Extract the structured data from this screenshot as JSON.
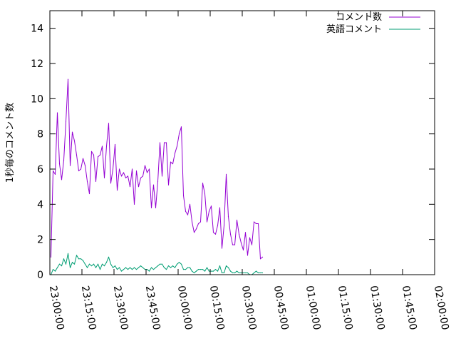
{
  "chart_data": {
    "type": "line",
    "title": "",
    "xlabel": "",
    "ylabel": "1秒毎のコメント数",
    "ylim": [
      0,
      15
    ],
    "xlim": [
      "23:00:00",
      "02:00:00"
    ],
    "yticks": [
      "0",
      "2",
      "4",
      "6",
      "8",
      "10",
      "12",
      "14"
    ],
    "xticks": [
      "23:00:00",
      "23:15:00",
      "23:30:00",
      "23:45:00",
      "00:00:00",
      "00:15:00",
      "00:30:00",
      "00:45:00",
      "01:00:00",
      "01:15:00",
      "01:30:00",
      "01:45:00",
      "02:00:00"
    ],
    "grid": false,
    "legend_position": "top-right",
    "series": [
      {
        "name": "コメント数",
        "color": "#9400d3",
        "points": [
          [
            "23:00:30",
            1.0
          ],
          [
            "23:01:30",
            5.9
          ],
          [
            "23:02:30",
            5.7
          ],
          [
            "23:03:30",
            9.2
          ],
          [
            "23:04:30",
            6.3
          ],
          [
            "23:05:30",
            5.4
          ],
          [
            "23:06:30",
            6.5
          ],
          [
            "23:07:30",
            8.7
          ],
          [
            "23:08:30",
            11.1
          ],
          [
            "23:09:30",
            6.2
          ],
          [
            "23:10:30",
            8.1
          ],
          [
            "23:11:30",
            7.6
          ],
          [
            "23:12:30",
            6.8
          ],
          [
            "23:13:30",
            5.9
          ],
          [
            "23:14:30",
            6.0
          ],
          [
            "23:15:30",
            6.6
          ],
          [
            "23:16:30",
            6.2
          ],
          [
            "23:17:30",
            5.3
          ],
          [
            "23:18:30",
            4.6
          ],
          [
            "23:19:30",
            7.0
          ],
          [
            "23:20:30",
            6.8
          ],
          [
            "23:21:30",
            5.3
          ],
          [
            "23:22:30",
            6.7
          ],
          [
            "23:23:30",
            6.8
          ],
          [
            "23:24:30",
            7.3
          ],
          [
            "23:25:30",
            5.5
          ],
          [
            "23:26:30",
            7.3
          ],
          [
            "23:27:30",
            8.6
          ],
          [
            "23:28:30",
            5.2
          ],
          [
            "23:29:30",
            6.0
          ],
          [
            "23:30:30",
            7.4
          ],
          [
            "23:31:30",
            4.8
          ],
          [
            "23:32:30",
            6.0
          ],
          [
            "23:33:30",
            5.6
          ],
          [
            "23:34:30",
            5.8
          ],
          [
            "23:35:30",
            5.5
          ],
          [
            "23:36:30",
            5.6
          ],
          [
            "23:37:30",
            5.0
          ],
          [
            "23:38:30",
            6.0
          ],
          [
            "23:39:30",
            4.0
          ],
          [
            "23:40:30",
            5.9
          ],
          [
            "23:41:30",
            5.0
          ],
          [
            "23:42:30",
            5.5
          ],
          [
            "23:43:30",
            5.6
          ],
          [
            "23:44:30",
            6.2
          ],
          [
            "23:45:30",
            5.8
          ],
          [
            "23:46:30",
            6.0
          ],
          [
            "23:47:30",
            3.8
          ],
          [
            "23:48:30",
            5.1
          ],
          [
            "23:49:30",
            3.8
          ],
          [
            "23:50:30",
            5.3
          ],
          [
            "23:51:30",
            7.5
          ],
          [
            "23:52:30",
            5.6
          ],
          [
            "23:53:30",
            7.5
          ],
          [
            "23:54:30",
            7.5
          ],
          [
            "23:55:30",
            5.1
          ],
          [
            "23:56:30",
            6.4
          ],
          [
            "23:57:30",
            6.3
          ],
          [
            "23:58:30",
            6.9
          ],
          [
            "23:59:30",
            7.3
          ],
          [
            "00:00:30",
            8.0
          ],
          [
            "00:01:30",
            8.4
          ],
          [
            "00:02:30",
            4.5
          ],
          [
            "00:03:30",
            3.6
          ],
          [
            "00:04:30",
            3.4
          ],
          [
            "00:05:30",
            4.0
          ],
          [
            "00:06:30",
            3.0
          ],
          [
            "00:07:30",
            2.4
          ],
          [
            "00:08:30",
            2.6
          ],
          [
            "00:09:30",
            2.9
          ],
          [
            "00:10:30",
            3.0
          ],
          [
            "00:11:30",
            5.2
          ],
          [
            "00:12:30",
            4.6
          ],
          [
            "00:13:30",
            3.0
          ],
          [
            "00:14:30",
            3.6
          ],
          [
            "00:15:30",
            3.9
          ],
          [
            "00:16:30",
            2.4
          ],
          [
            "00:17:30",
            2.3
          ],
          [
            "00:18:30",
            2.8
          ],
          [
            "00:19:30",
            3.8
          ],
          [
            "00:20:30",
            1.5
          ],
          [
            "00:21:30",
            2.8
          ],
          [
            "00:22:30",
            5.7
          ],
          [
            "00:23:30",
            3.3
          ],
          [
            "00:24:30",
            2.3
          ],
          [
            "00:25:30",
            1.7
          ],
          [
            "00:26:30",
            1.7
          ],
          [
            "00:27:30",
            3.1
          ],
          [
            "00:28:30",
            2.3
          ],
          [
            "00:29:30",
            1.8
          ],
          [
            "00:30:30",
            1.4
          ],
          [
            "00:31:30",
            2.4
          ],
          [
            "00:32:30",
            1.1
          ],
          [
            "00:33:30",
            2.1
          ],
          [
            "00:34:30",
            1.7
          ],
          [
            "00:35:30",
            3.0
          ],
          [
            "00:36:30",
            2.9
          ],
          [
            "00:37:30",
            2.9
          ],
          [
            "00:38:30",
            0.9
          ],
          [
            "00:39:30",
            1.0
          ]
        ]
      },
      {
        "name": "英語コメント",
        "color": "#009e73",
        "points": [
          [
            "23:00:30",
            0.0
          ],
          [
            "23:01:30",
            0.3
          ],
          [
            "23:02:30",
            0.2
          ],
          [
            "23:03:30",
            0.4
          ],
          [
            "23:04:30",
            0.6
          ],
          [
            "23:05:30",
            0.5
          ],
          [
            "23:06:30",
            0.9
          ],
          [
            "23:07:30",
            0.6
          ],
          [
            "23:08:30",
            1.2
          ],
          [
            "23:09:30",
            0.4
          ],
          [
            "23:10:30",
            0.7
          ],
          [
            "23:11:30",
            0.6
          ],
          [
            "23:12:30",
            1.1
          ],
          [
            "23:13:30",
            0.9
          ],
          [
            "23:14:30",
            0.9
          ],
          [
            "23:15:30",
            0.8
          ],
          [
            "23:16:30",
            0.6
          ],
          [
            "23:17:30",
            0.4
          ],
          [
            "23:18:30",
            0.6
          ],
          [
            "23:19:30",
            0.5
          ],
          [
            "23:20:30",
            0.6
          ],
          [
            "23:21:30",
            0.4
          ],
          [
            "23:22:30",
            0.6
          ],
          [
            "23:23:30",
            0.3
          ],
          [
            "23:24:30",
            0.6
          ],
          [
            "23:25:30",
            0.5
          ],
          [
            "23:26:30",
            0.7
          ],
          [
            "23:27:30",
            1.0
          ],
          [
            "23:28:30",
            0.6
          ],
          [
            "23:29:30",
            0.4
          ],
          [
            "23:30:30",
            0.5
          ],
          [
            "23:31:30",
            0.3
          ],
          [
            "23:32:30",
            0.4
          ],
          [
            "23:33:30",
            0.2
          ],
          [
            "23:34:30",
            0.3
          ],
          [
            "23:35:30",
            0.4
          ],
          [
            "23:36:30",
            0.3
          ],
          [
            "23:37:30",
            0.4
          ],
          [
            "23:38:30",
            0.3
          ],
          [
            "23:39:30",
            0.4
          ],
          [
            "23:40:30",
            0.3
          ],
          [
            "23:41:30",
            0.4
          ],
          [
            "23:42:30",
            0.5
          ],
          [
            "23:43:30",
            0.4
          ],
          [
            "23:44:30",
            0.3
          ],
          [
            "23:45:30",
            0.3
          ],
          [
            "23:46:30",
            0.2
          ],
          [
            "23:47:30",
            0.4
          ],
          [
            "23:48:30",
            0.3
          ],
          [
            "23:49:30",
            0.4
          ],
          [
            "23:50:30",
            0.5
          ],
          [
            "23:51:30",
            0.6
          ],
          [
            "23:52:30",
            0.6
          ],
          [
            "23:53:30",
            0.4
          ],
          [
            "23:54:30",
            0.3
          ],
          [
            "23:55:30",
            0.5
          ],
          [
            "23:56:30",
            0.4
          ],
          [
            "23:57:30",
            0.5
          ],
          [
            "23:58:30",
            0.4
          ],
          [
            "23:59:30",
            0.6
          ],
          [
            "00:00:30",
            0.7
          ],
          [
            "00:01:30",
            0.6
          ],
          [
            "00:02:30",
            0.3
          ],
          [
            "00:03:30",
            0.3
          ],
          [
            "00:04:30",
            0.4
          ],
          [
            "00:05:30",
            0.4
          ],
          [
            "00:06:30",
            0.2
          ],
          [
            "00:07:30",
            0.1
          ],
          [
            "00:08:30",
            0.2
          ],
          [
            "00:09:30",
            0.3
          ],
          [
            "00:10:30",
            0.3
          ],
          [
            "00:11:30",
            0.3
          ],
          [
            "00:12:30",
            0.2
          ],
          [
            "00:13:30",
            0.4
          ],
          [
            "00:14:30",
            0.2
          ],
          [
            "00:15:30",
            0.2
          ],
          [
            "00:16:30",
            0.2
          ],
          [
            "00:17:30",
            0.3
          ],
          [
            "00:18:30",
            0.2
          ],
          [
            "00:19:30",
            0.5
          ],
          [
            "00:20:30",
            0.1
          ],
          [
            "00:21:30",
            0.1
          ],
          [
            "00:22:30",
            0.5
          ],
          [
            "00:23:30",
            0.4
          ],
          [
            "00:24:30",
            0.2
          ],
          [
            "00:25:30",
            0.1
          ],
          [
            "00:26:30",
            0.1
          ],
          [
            "00:27:30",
            0.2
          ],
          [
            "00:28:30",
            0.1
          ],
          [
            "00:29:30",
            0.1
          ],
          [
            "00:30:30",
            0.1
          ],
          [
            "00:31:30",
            0.1
          ],
          [
            "00:32:30",
            0.1
          ],
          [
            "00:33:30",
            0.0
          ],
          [
            "00:34:30",
            0.0
          ],
          [
            "00:35:30",
            0.1
          ],
          [
            "00:36:30",
            0.2
          ],
          [
            "00:37:30",
            0.1
          ],
          [
            "00:38:30",
            0.1
          ],
          [
            "00:39:30",
            0.1
          ]
        ]
      }
    ]
  }
}
